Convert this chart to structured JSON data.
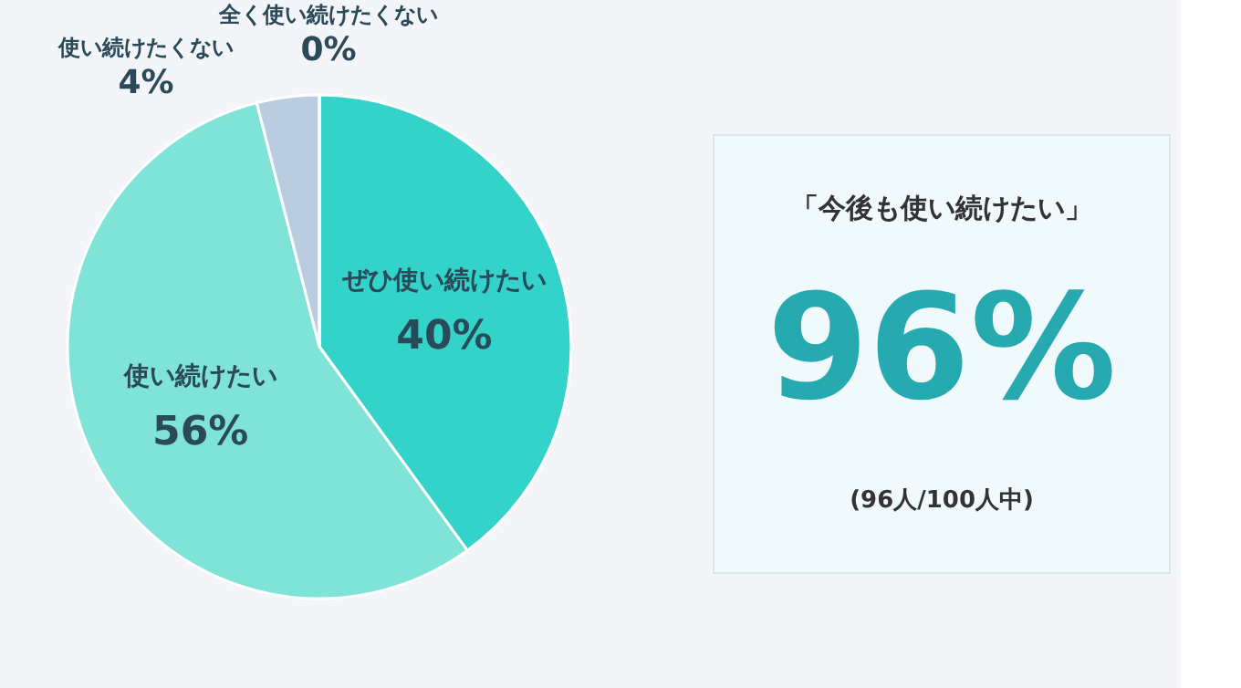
{
  "chart_data": [
    {
      "type": "pie",
      "categories": [
        "ぜひ使い続けたい",
        "使い続けたい",
        "使い続けたくない",
        "全く使い続けたくない"
      ],
      "values": [
        40,
        56,
        4,
        0
      ],
      "colors": [
        "#33d3ca",
        "#80e3d8",
        "#b9cce0",
        "#a9bfd6"
      ],
      "value_labels": [
        "40%",
        "56%",
        "4%",
        "0%"
      ]
    },
    {
      "type": "other",
      "annotations": [
        "「今後も使い続けたい」",
        "96%",
        "(96人/100人中)"
      ]
    }
  ]
}
